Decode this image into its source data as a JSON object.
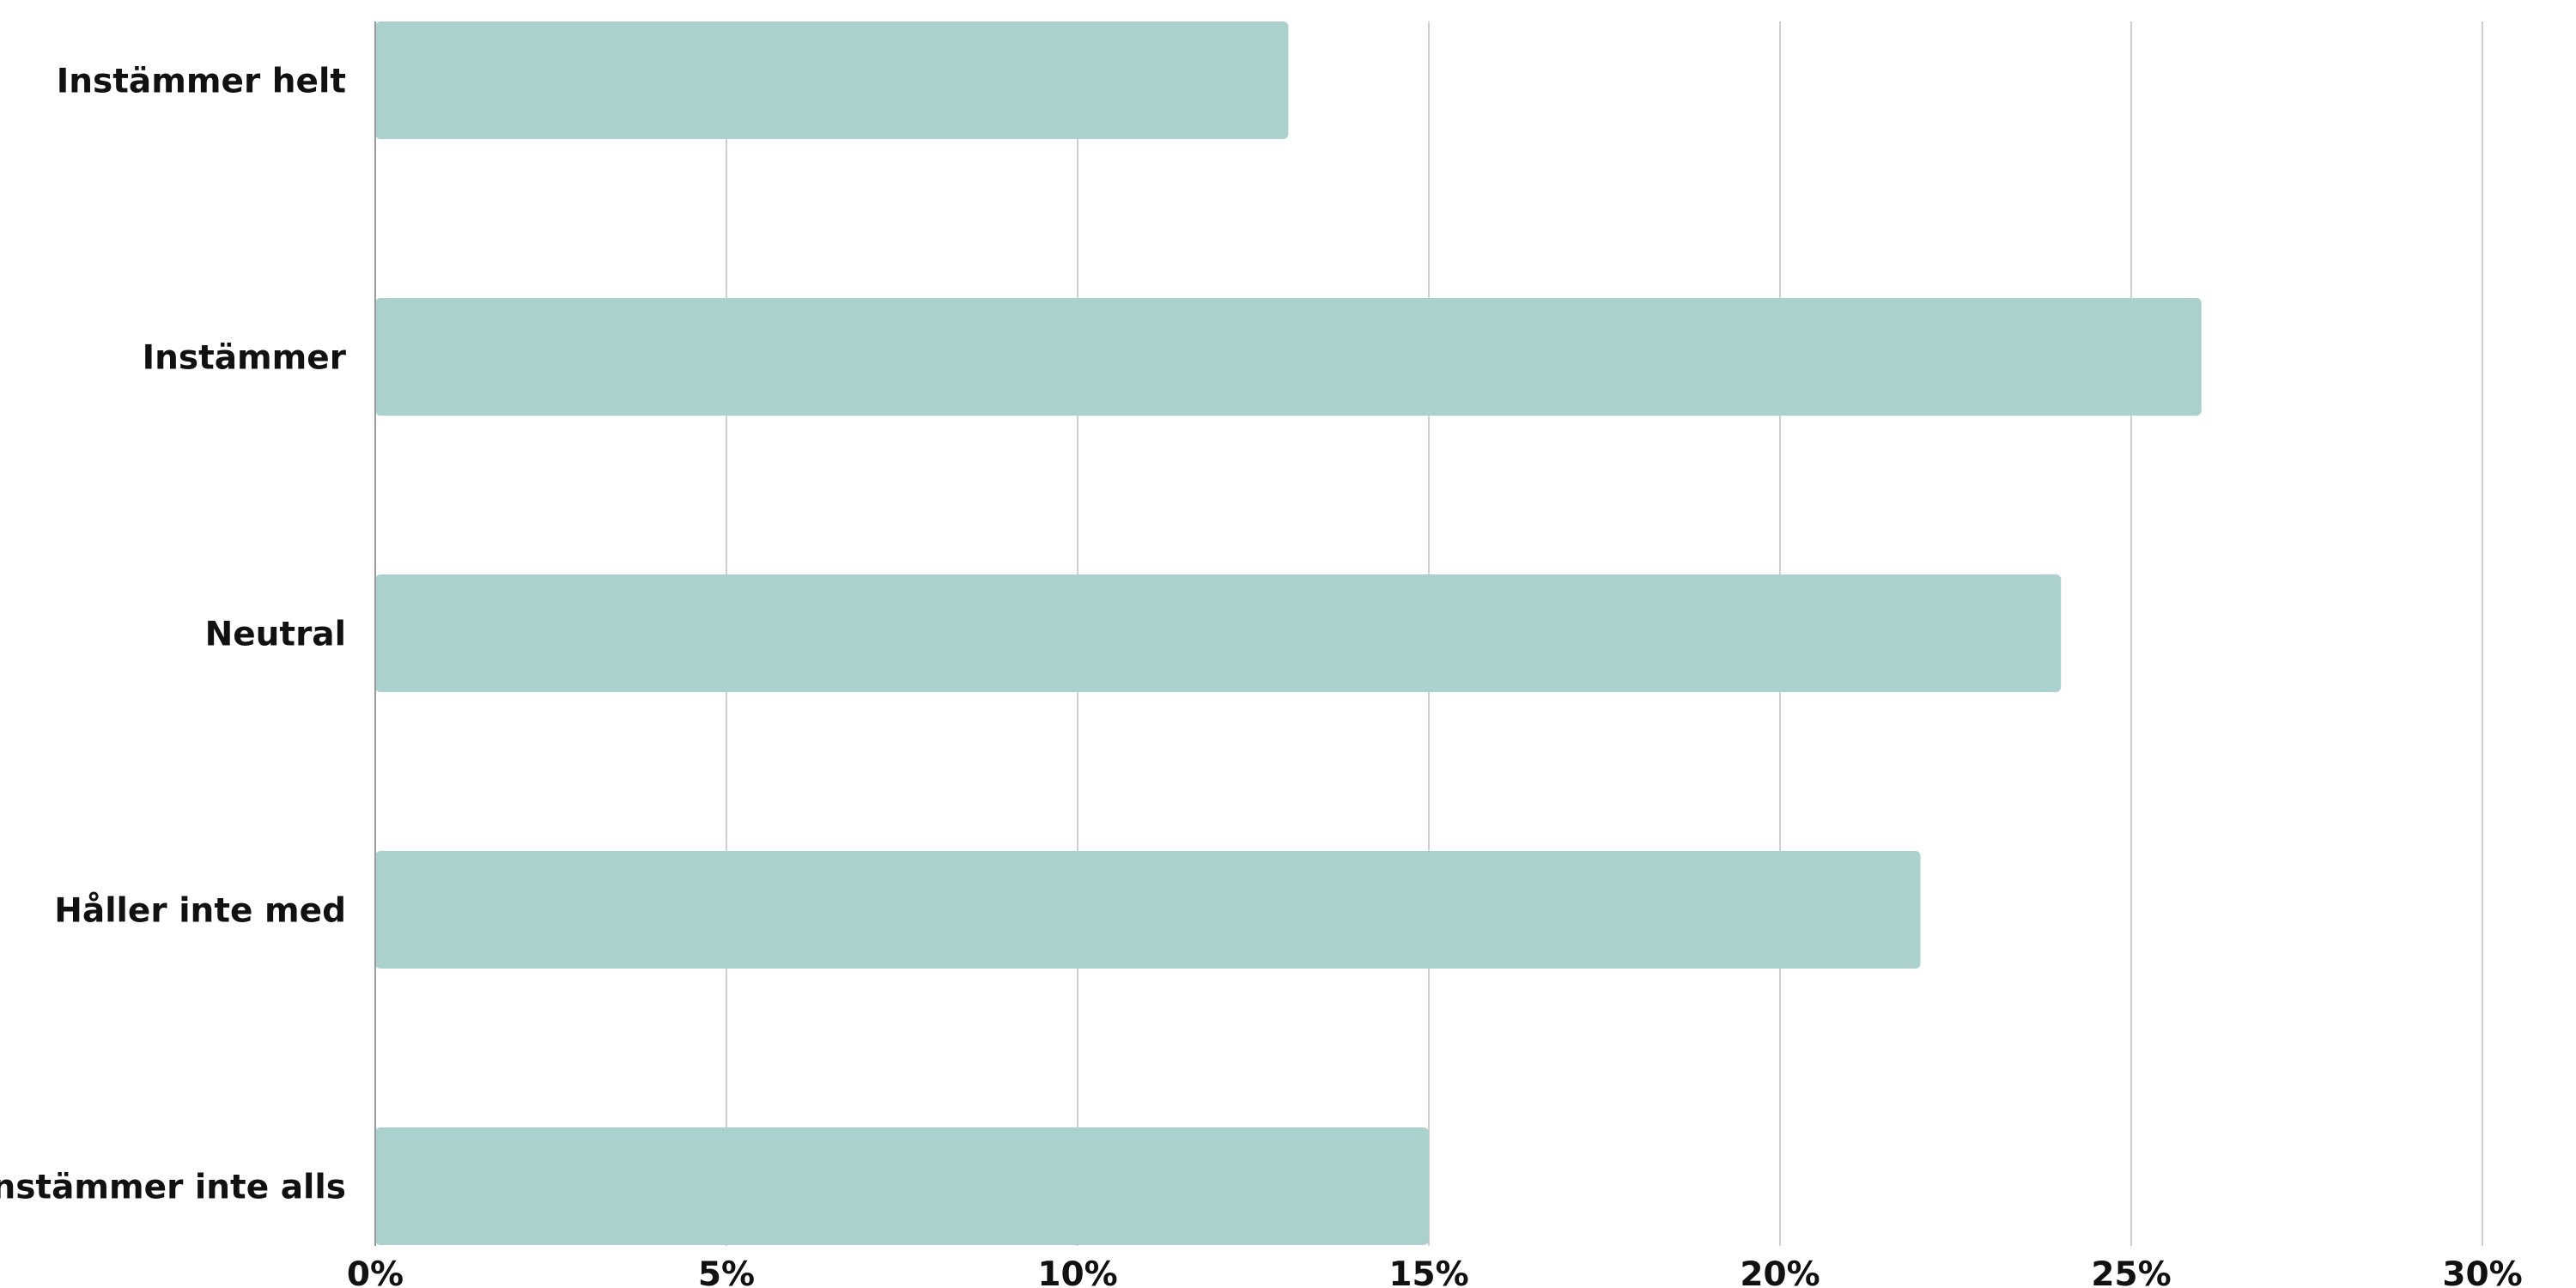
{
  "chart_data": {
    "type": "bar",
    "orientation": "horizontal",
    "categories": [
      "Instämmer helt",
      "Instämmer",
      "Neutral",
      "Håller inte med",
      "Instämmer inte alls"
    ],
    "values": [
      13,
      26,
      24,
      22,
      15
    ],
    "value_unit": "%",
    "xlim": [
      0,
      30
    ],
    "x_ticks": [
      0,
      5,
      10,
      15,
      20,
      25,
      30
    ],
    "x_tick_labels": [
      "0%",
      "5%",
      "10%",
      "15%",
      "20%",
      "25%",
      "30%"
    ],
    "title": "",
    "xlabel": "",
    "ylabel": "",
    "grid": true,
    "legend": "none",
    "bar_color": "#aad1ce"
  }
}
